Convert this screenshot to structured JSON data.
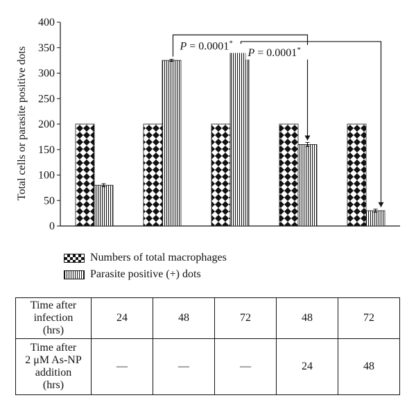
{
  "chart_data": {
    "type": "bar",
    "ylabel": "Total cells or parasite positive dots",
    "ylim": [
      0,
      400
    ],
    "yticks": [
      0,
      50,
      100,
      150,
      200,
      250,
      300,
      350,
      400
    ],
    "categories": [
      "1",
      "2",
      "3",
      "4",
      "5"
    ],
    "series": [
      {
        "name": "Numbers of total macrophages",
        "pattern": "diamond",
        "values": [
          200,
          200,
          200,
          200,
          200
        ],
        "errors": [
          0,
          0,
          0,
          0,
          0
        ]
      },
      {
        "name": "Parasite positive (+) dots",
        "pattern": "vertical-stripes",
        "values": [
          80,
          325,
          350,
          160,
          30
        ],
        "errors": [
          3,
          2,
          2,
          4,
          3
        ]
      }
    ],
    "annotations": [
      {
        "text": "P = 0.0001",
        "mark": "*",
        "from_category": 1,
        "to_category": 3,
        "series": 1,
        "apex": 375
      },
      {
        "text": "P = 0.0001",
        "mark": "*",
        "from_category": 2,
        "to_category": 4,
        "series": 1,
        "apex": 362
      }
    ],
    "grid": false,
    "legend_position": "bottom"
  },
  "table": {
    "rows": [
      {
        "header": [
          "Time after",
          "infection",
          "(hrs)"
        ],
        "cells": [
          "24",
          "48",
          "72",
          "48",
          "72"
        ]
      },
      {
        "header": [
          "Time after",
          "2 μM As-NP",
          "addition",
          "(hrs)"
        ],
        "cells": [
          "—",
          "—",
          "—",
          "24",
          "48"
        ]
      }
    ]
  }
}
